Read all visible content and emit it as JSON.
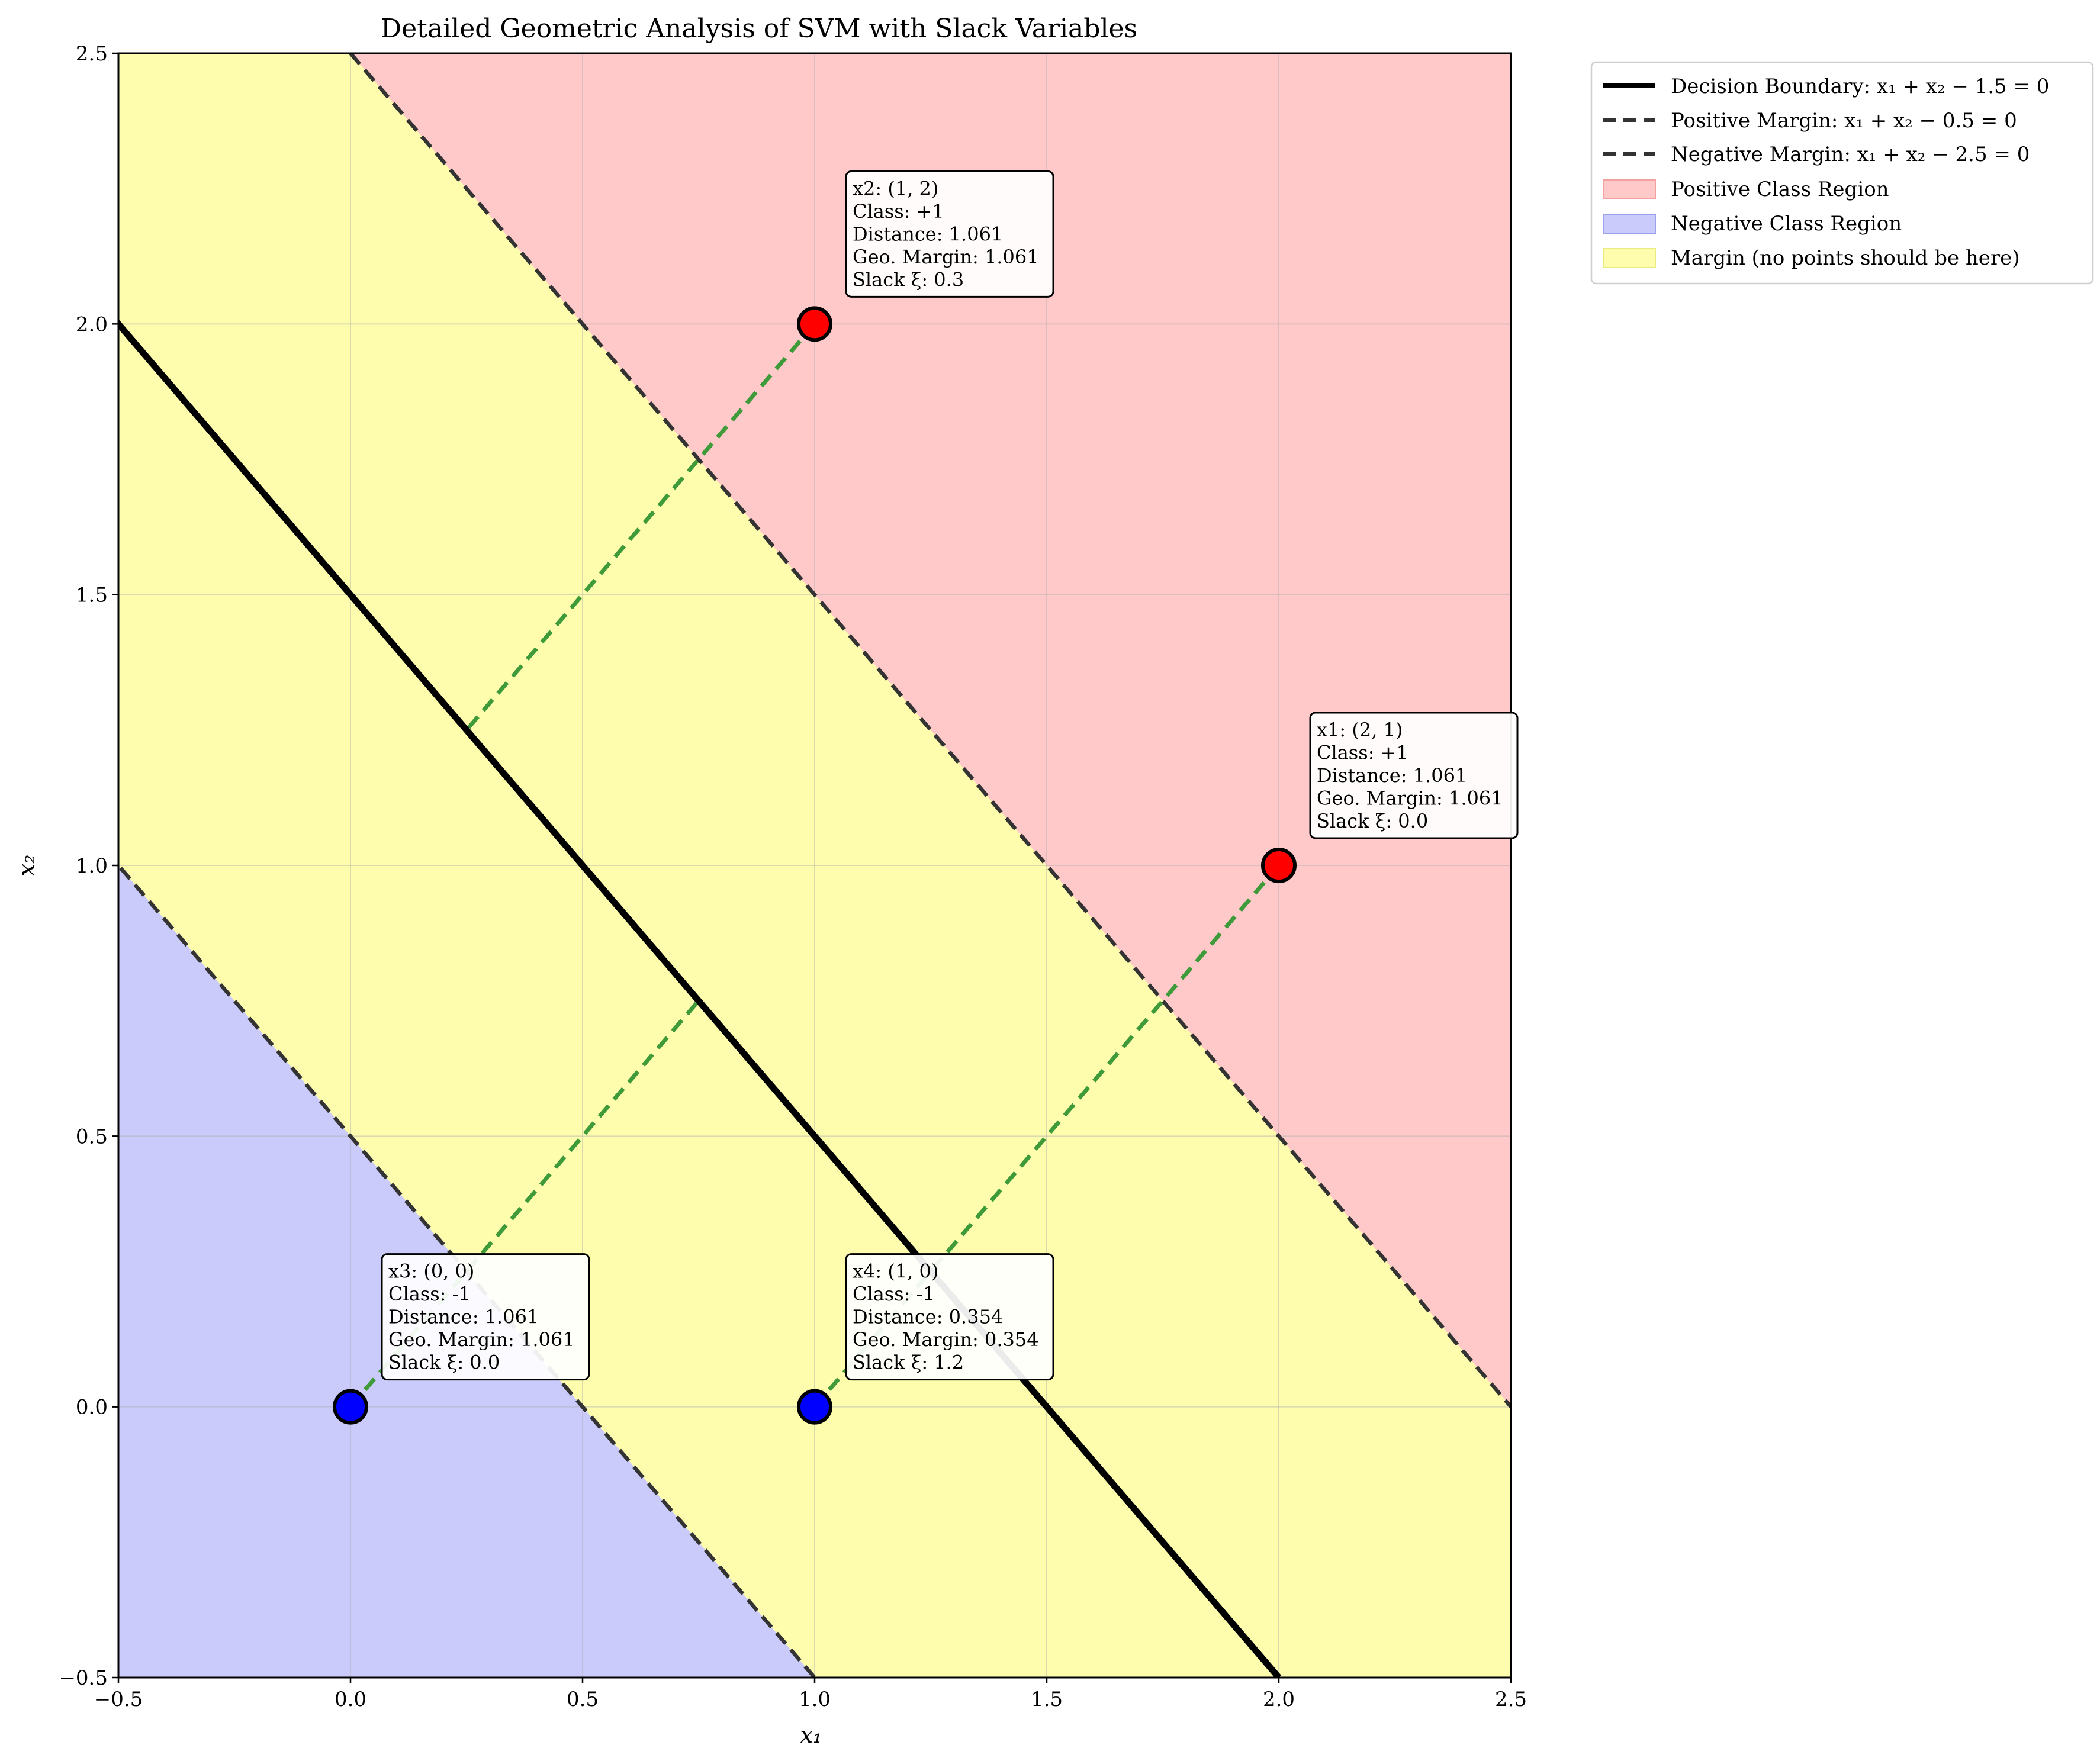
{
  "chart_data": {
    "type": "scatter",
    "title": "Detailed Geometric Analysis of SVM with Slack Variables",
    "xlabel": "x₁",
    "ylabel": "x₂",
    "xlim": [
      -0.5,
      2.5
    ],
    "ylim": [
      -0.5,
      2.5
    ],
    "xticks": [
      "−0.5",
      "0.0",
      "0.5",
      "1.0",
      "1.5",
      "2.0",
      "2.5"
    ],
    "yticks": [
      "−0.5",
      "0.0",
      "0.5",
      "1.0",
      "1.5",
      "2.0",
      "2.5"
    ],
    "xtick_values": [
      -0.5,
      0.0,
      0.5,
      1.0,
      1.5,
      2.0,
      2.5
    ],
    "ytick_values": [
      -0.5,
      0.0,
      0.5,
      1.0,
      1.5,
      2.0,
      2.5
    ],
    "grid": true,
    "legend_position": "outside upper-right",
    "lines": [
      {
        "name": "Decision Boundary: x₁ + x₂ − 1.5 = 0",
        "c": 1.5,
        "style": "solid",
        "color": "#000000"
      },
      {
        "name": "Positive Margin: x₁ + x₂ − 0.5 = 0",
        "c": 0.5,
        "style": "dashed",
        "color": "#333333"
      },
      {
        "name": "Negative Margin: x₁ + x₂ − 2.5 = 0",
        "c": 2.5,
        "style": "dashed",
        "color": "#333333"
      }
    ],
    "regions": [
      {
        "name": "Positive Class Region",
        "color": "#ffc9c9"
      },
      {
        "name": "Negative Class Region",
        "color": "#cacbfb"
      },
      {
        "name": "Margin (no points should be here)",
        "color": "#fdfdad"
      }
    ],
    "points": [
      {
        "id": "x1",
        "x": 2,
        "y": 1,
        "class": "+1",
        "color": "#ff0000",
        "lines": [
          "x1: (2, 1)",
          "Class: +1",
          "Distance: 1.061",
          "Geo. Margin: 1.061",
          "Slack ξ: 0.0"
        ]
      },
      {
        "id": "x2",
        "x": 1,
        "y": 2,
        "class": "+1",
        "color": "#ff0000",
        "lines": [
          "x2: (1, 2)",
          "Class: +1",
          "Distance: 1.061",
          "Geo. Margin: 1.061",
          "Slack ξ: 0.3"
        ]
      },
      {
        "id": "x3",
        "x": 0,
        "y": 0,
        "class": "-1",
        "color": "#0000ff",
        "lines": [
          "x3: (0, 0)",
          "Class: -1",
          "Distance: 1.061",
          "Geo. Margin: 1.061",
          "Slack ξ: 0.0"
        ]
      },
      {
        "id": "x4",
        "x": 1,
        "y": 0,
        "class": "-1",
        "color": "#0000ff",
        "lines": [
          "x4: (1, 0)",
          "Class: -1",
          "Distance: 0.354",
          "Geo. Margin: 0.354",
          "Slack ξ: 1.2"
        ]
      }
    ],
    "perpendicular_color": "#3f9a3a"
  }
}
